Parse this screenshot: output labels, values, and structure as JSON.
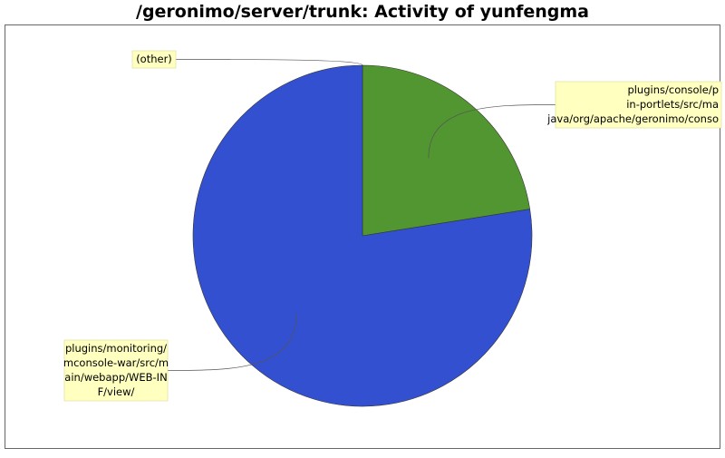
{
  "chart_data": {
    "type": "pie",
    "title": "/geronimo/server/trunk: Activity of yunfengma",
    "slices": [
      {
        "label": "(other)",
        "lines": [
          "(other)"
        ],
        "value": 0.0,
        "color": "#9e9e9e"
      },
      {
        "label": "plugins/console/plugin-portlets/src/main/java/org/apache/geronimo/console",
        "lines": [
          "plugins/console/p",
          "in-portlets/src/ma",
          "java/org/apache/geronimo/conso"
        ],
        "value": 22.5,
        "color": "#529632"
      },
      {
        "label": "plugins/monitoring/mconsole-war/src/main/webapp/WEB-INF/view/",
        "lines": [
          "plugins/monitoring/",
          "mconsole-war/src/m",
          "ain/webapp/WEB-IN",
          "F/view/"
        ],
        "value": 77.5,
        "color": "#3250d0"
      }
    ],
    "legend": "none",
    "label_background": "#ffffc0"
  }
}
